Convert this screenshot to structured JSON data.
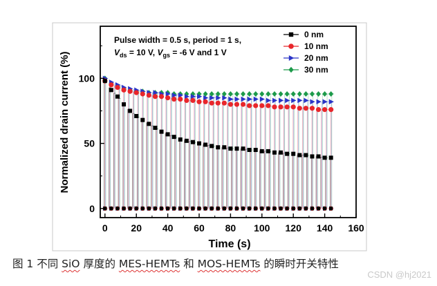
{
  "chart_data": {
    "type": "scatter",
    "title": "",
    "annotation": {
      "line1": "Pulse width = 0.5 s, period = 1 s,",
      "v1": "V",
      "v1_sub": "ds",
      "v1_rest": " = 10 V, ",
      "v2": "V",
      "v2_sub": "gs",
      "v2_rest": " = -6 V and 1 V"
    },
    "xlabel": "Time (s)",
    "ylabel": "Normalized drain current (%)",
    "xlim": [
      -3,
      160
    ],
    "ylim": [
      -7,
      140
    ],
    "xticks": [
      0,
      20,
      40,
      60,
      80,
      100,
      120,
      140,
      160
    ],
    "yticks": [
      0,
      50,
      100
    ],
    "pulse_times": [
      0,
      3,
      6,
      9,
      12,
      15,
      18,
      21,
      24,
      27,
      30,
      33,
      36,
      39,
      42,
      45,
      48,
      51,
      54,
      57,
      60,
      63,
      66,
      69,
      72,
      75,
      78,
      81,
      84,
      87,
      90,
      93,
      96,
      99,
      102,
      105,
      108,
      111,
      114,
      117,
      120,
      123,
      126,
      129,
      132,
      135,
      138,
      141,
      144
    ],
    "series": [
      {
        "name": "0 nm",
        "color": "#000000",
        "marker": "square",
        "x": [
          0,
          4,
          8,
          12,
          16,
          20,
          24,
          28,
          32,
          36,
          40,
          44,
          48,
          52,
          56,
          60,
          64,
          68,
          72,
          76,
          80,
          84,
          88,
          92,
          96,
          100,
          104,
          108,
          112,
          116,
          120,
          124,
          128,
          132,
          136,
          140,
          144
        ],
        "on": [
          98,
          91,
          86,
          80,
          75,
          71,
          68,
          65,
          62,
          59,
          57,
          55,
          53,
          52,
          51,
          50,
          49,
          48,
          47,
          47,
          46,
          46,
          46,
          45,
          45,
          44,
          44,
          43,
          43,
          42,
          42,
          41,
          41,
          40,
          40,
          39,
          39
        ],
        "off": 0
      },
      {
        "name": "10 nm",
        "color": "#e8262b",
        "marker": "circle",
        "x": [
          0,
          4,
          8,
          12,
          16,
          20,
          24,
          28,
          32,
          36,
          40,
          44,
          48,
          52,
          56,
          60,
          64,
          68,
          72,
          76,
          80,
          84,
          88,
          92,
          96,
          100,
          104,
          108,
          112,
          116,
          120,
          124,
          128,
          132,
          136,
          140,
          144
        ],
        "on": [
          98,
          95,
          93,
          91,
          90,
          89,
          88,
          87,
          86,
          86,
          85,
          84,
          84,
          83,
          83,
          82,
          82,
          81,
          81,
          81,
          80,
          80,
          80,
          79,
          79,
          79,
          79,
          78,
          78,
          78,
          78,
          77,
          77,
          77,
          76,
          76,
          76
        ],
        "off": 0
      },
      {
        "name": "20 nm",
        "color": "#2a34c8",
        "marker": "triangle-right",
        "x": [
          0,
          4,
          8,
          12,
          16,
          20,
          24,
          28,
          32,
          36,
          40,
          44,
          48,
          52,
          56,
          60,
          64,
          68,
          72,
          76,
          80,
          84,
          88,
          92,
          96,
          100,
          104,
          108,
          112,
          116,
          120,
          124,
          128,
          132,
          136,
          140,
          144
        ],
        "on": [
          100,
          97,
          95,
          93,
          92,
          91,
          90,
          89,
          89,
          88,
          88,
          87,
          87,
          86,
          86,
          86,
          85,
          85,
          85,
          85,
          84,
          84,
          84,
          84,
          84,
          84,
          83,
          83,
          83,
          83,
          83,
          83,
          83,
          82,
          82,
          82,
          82
        ],
        "off": 0
      },
      {
        "name": "30 nm",
        "color": "#1c9a4a",
        "marker": "diamond",
        "x": [
          0,
          4,
          8,
          12,
          16,
          20,
          24,
          28,
          32,
          36,
          40,
          44,
          48,
          52,
          56,
          60,
          64,
          68,
          72,
          76,
          80,
          84,
          88,
          92,
          96,
          100,
          104,
          108,
          112,
          116,
          120,
          124,
          128,
          132,
          136,
          140,
          144
        ],
        "on": [
          100,
          96,
          94,
          92,
          91,
          90,
          90,
          89,
          89,
          89,
          89,
          88,
          88,
          88,
          88,
          88,
          88,
          88,
          88,
          88,
          88,
          88,
          88,
          88,
          88,
          88,
          88,
          88,
          88,
          88,
          88,
          88,
          88,
          88,
          88,
          88,
          88
        ],
        "off": 0
      }
    ],
    "legend_position": "top-right"
  },
  "caption": {
    "prefix": "图 1 不同 ",
    "sio": "SiO",
    "mid1": " 厚度的 ",
    "mes": "MES-HEMTs",
    "mid2": " 和 ",
    "mos": "MOS-HEMTs",
    "suffix": " 的瞬时开关特性"
  },
  "watermark": "CSDN @hj2021"
}
